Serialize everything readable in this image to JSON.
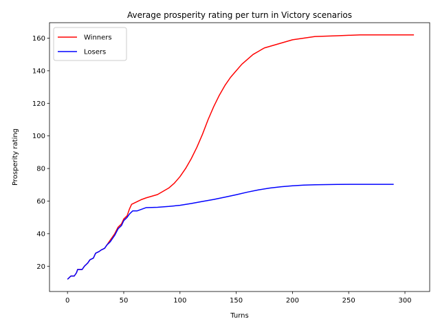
{
  "chart_data": {
    "type": "line",
    "title": "Average prosperity rating per turn in Victory scenarios",
    "xlabel": "Turns",
    "ylabel": "Prosperity rating",
    "xlim": [
      -16,
      322
    ],
    "ylim": [
      4.5,
      169.5
    ],
    "xticks": [
      0,
      50,
      100,
      150,
      200,
      250,
      300
    ],
    "yticks": [
      20,
      40,
      60,
      80,
      100,
      120,
      140,
      160
    ],
    "grid": false,
    "legend": "top-left",
    "series": [
      {
        "name": "Winners",
        "color": "#ff0000",
        "points": [
          [
            0,
            12
          ],
          [
            3,
            14
          ],
          [
            6,
            14
          ],
          [
            8,
            16
          ],
          [
            9,
            18
          ],
          [
            13,
            18
          ],
          [
            15,
            20
          ],
          [
            18,
            22
          ],
          [
            20,
            24
          ],
          [
            23,
            25
          ],
          [
            25,
            28
          ],
          [
            28,
            29
          ],
          [
            30,
            30
          ],
          [
            33,
            31
          ],
          [
            35,
            33
          ],
          [
            38,
            36
          ],
          [
            40,
            38
          ],
          [
            42,
            40
          ],
          [
            45,
            44
          ],
          [
            48,
            46
          ],
          [
            50,
            49
          ],
          [
            53,
            51
          ],
          [
            55,
            55
          ],
          [
            57,
            58
          ],
          [
            60,
            59
          ],
          [
            63,
            60
          ],
          [
            66,
            61
          ],
          [
            70,
            62
          ],
          [
            75,
            63
          ],
          [
            80,
            64
          ],
          [
            85,
            66
          ],
          [
            90,
            68
          ],
          [
            95,
            71
          ],
          [
            100,
            75
          ],
          [
            105,
            80
          ],
          [
            110,
            86
          ],
          [
            115,
            93
          ],
          [
            120,
            101
          ],
          [
            125,
            110
          ],
          [
            130,
            118
          ],
          [
            135,
            125
          ],
          [
            140,
            131
          ],
          [
            145,
            136
          ],
          [
            150,
            140
          ],
          [
            155,
            144
          ],
          [
            160,
            147
          ],
          [
            165,
            150
          ],
          [
            170,
            152
          ],
          [
            175,
            154
          ],
          [
            180,
            155
          ],
          [
            190,
            157
          ],
          [
            200,
            159
          ],
          [
            210,
            160
          ],
          [
            220,
            161
          ],
          [
            240,
            161.5
          ],
          [
            260,
            162
          ],
          [
            280,
            162
          ],
          [
            300,
            162
          ],
          [
            308,
            162
          ]
        ]
      },
      {
        "name": "Losers",
        "color": "#0000ff",
        "points": [
          [
            0,
            12
          ],
          [
            3,
            14
          ],
          [
            6,
            14
          ],
          [
            8,
            16
          ],
          [
            9,
            18
          ],
          [
            13,
            18
          ],
          [
            15,
            20
          ],
          [
            18,
            22
          ],
          [
            20,
            24
          ],
          [
            23,
            25
          ],
          [
            25,
            28
          ],
          [
            28,
            29
          ],
          [
            30,
            30
          ],
          [
            33,
            31
          ],
          [
            35,
            33
          ],
          [
            38,
            35
          ],
          [
            40,
            37
          ],
          [
            42,
            39
          ],
          [
            45,
            43
          ],
          [
            48,
            45
          ],
          [
            50,
            48
          ],
          [
            53,
            50
          ],
          [
            55,
            52
          ],
          [
            58,
            54
          ],
          [
            62,
            54
          ],
          [
            66,
            55
          ],
          [
            70,
            56
          ],
          [
            80,
            56.2
          ],
          [
            90,
            56.7
          ],
          [
            100,
            57.4
          ],
          [
            110,
            58.5
          ],
          [
            120,
            59.8
          ],
          [
            130,
            61
          ],
          [
            140,
            62.4
          ],
          [
            150,
            63.9
          ],
          [
            160,
            65.5
          ],
          [
            170,
            66.9
          ],
          [
            180,
            68
          ],
          [
            190,
            68.8
          ],
          [
            200,
            69.4
          ],
          [
            210,
            69.8
          ],
          [
            220,
            70
          ],
          [
            240,
            70.2
          ],
          [
            260,
            70.3
          ],
          [
            280,
            70.3
          ],
          [
            290,
            70.3
          ]
        ]
      }
    ]
  }
}
